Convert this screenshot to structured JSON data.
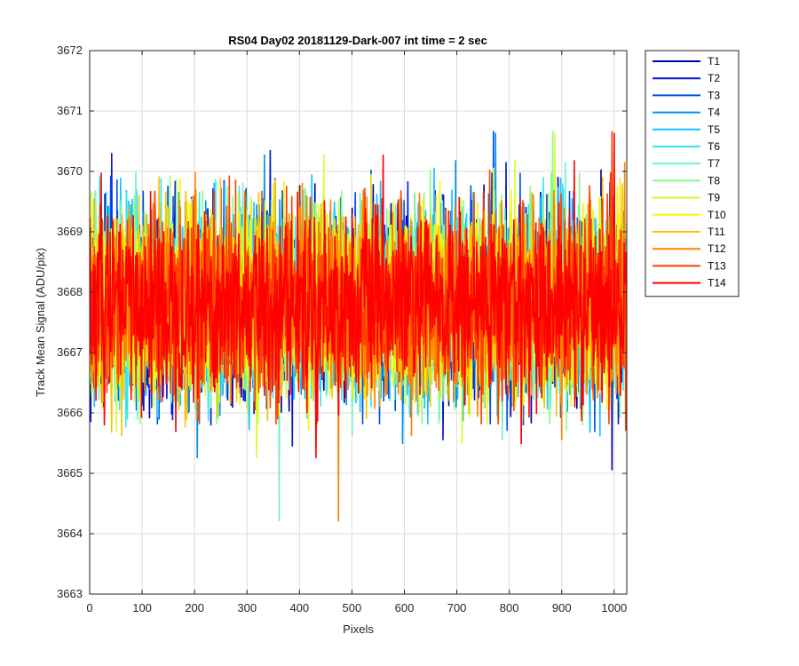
{
  "chart_data": {
    "type": "line",
    "title": "RS04 Day02 20181129-Dark-007 int time = 2 sec",
    "xlabel": "Pixels",
    "ylabel": "Track Mean Signal (ADU/pix)",
    "xlim": [
      0,
      1024
    ],
    "ylim": [
      3663,
      3672
    ],
    "xticks": [
      0,
      100,
      200,
      300,
      400,
      500,
      600,
      700,
      800,
      900,
      1000
    ],
    "yticks": [
      3663,
      3664,
      3665,
      3666,
      3667,
      3668,
      3669,
      3670,
      3671,
      3672
    ],
    "xtick_labels": [
      "0",
      "100",
      "200",
      "300",
      "400",
      "500",
      "600",
      "700",
      "800",
      "900",
      "1000"
    ],
    "ytick_labels": [
      "3663",
      "3664",
      "3665",
      "3666",
      "3667",
      "3668",
      "3669",
      "3670",
      "3671",
      "3672"
    ],
    "grid": true,
    "legend_position": "outside-top-right",
    "noise_mean": 3667.8,
    "noise_std": 0.75,
    "points_per_series": 1024,
    "series": [
      {
        "name": "T1",
        "color": "#0000a8"
      },
      {
        "name": "T2",
        "color": "#0016d6"
      },
      {
        "name": "T3",
        "color": "#0050e6"
      },
      {
        "name": "T4",
        "color": "#0091f0"
      },
      {
        "name": "T5",
        "color": "#12c0ff"
      },
      {
        "name": "T6",
        "color": "#33e8f0"
      },
      {
        "name": "T7",
        "color": "#6ff0c3"
      },
      {
        "name": "T8",
        "color": "#8cfb8a"
      },
      {
        "name": "T9",
        "color": "#d2ff2e"
      },
      {
        "name": "T10",
        "color": "#fff200"
      },
      {
        "name": "T11",
        "color": "#ffc000"
      },
      {
        "name": "T12",
        "color": "#ff8000"
      },
      {
        "name": "T13",
        "color": "#ff4000"
      },
      {
        "name": "T14",
        "color": "#ff0000"
      }
    ]
  }
}
